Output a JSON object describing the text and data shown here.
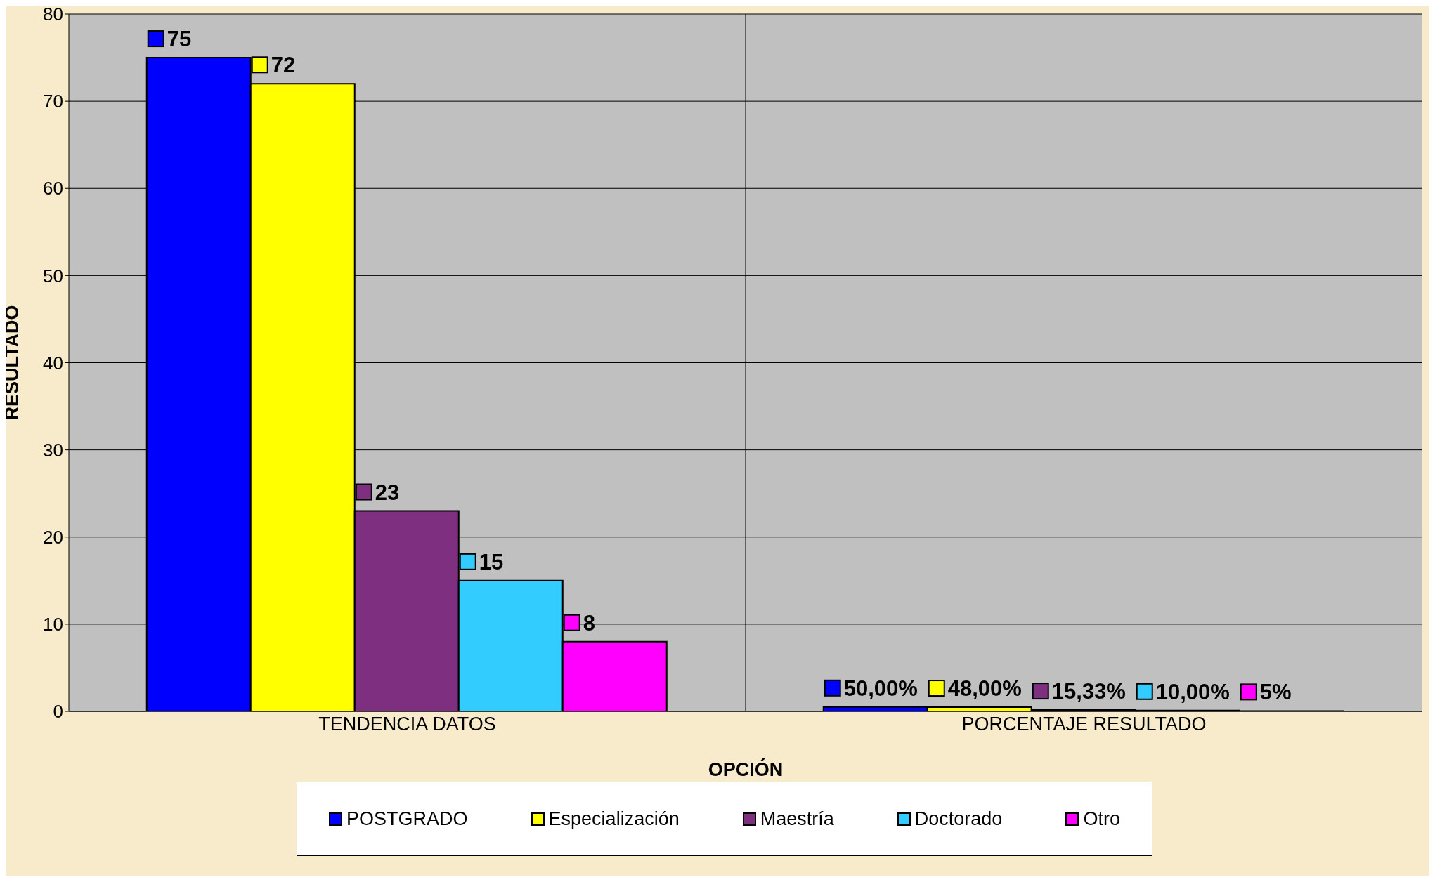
{
  "chart_data": {
    "type": "bar",
    "xlabel": "OPCIÓN",
    "ylabel": "RESULTADO",
    "categories": [
      "TENDENCIA DATOS",
      "PORCENTAJE RESULTADO"
    ],
    "series": [
      {
        "name": "POSTGRADO",
        "color": "#0000ff",
        "values": [
          75,
          0.5
        ],
        "value_labels": [
          "75",
          "50,00%"
        ]
      },
      {
        "name": "Especialización",
        "color": "#ffff00",
        "values": [
          72,
          0.48
        ],
        "value_labels": [
          "72",
          "48,00%"
        ]
      },
      {
        "name": "Maestría",
        "color": "#7f2f7f",
        "values": [
          23,
          0.1533
        ],
        "value_labels": [
          "23",
          "15,33%"
        ]
      },
      {
        "name": "Doctorado",
        "color": "#33ccff",
        "values": [
          15,
          0.1
        ],
        "value_labels": [
          "15",
          "10,00%"
        ]
      },
      {
        "name": "Otro",
        "color": "#ff00ff",
        "values": [
          8,
          0.05
        ],
        "value_labels": [
          "8",
          "5%"
        ]
      }
    ],
    "ylim": [
      0,
      80
    ],
    "yticks": [
      0,
      10,
      20,
      30,
      40,
      50,
      60,
      70,
      80
    ],
    "grid": true,
    "legend": "bottom"
  }
}
